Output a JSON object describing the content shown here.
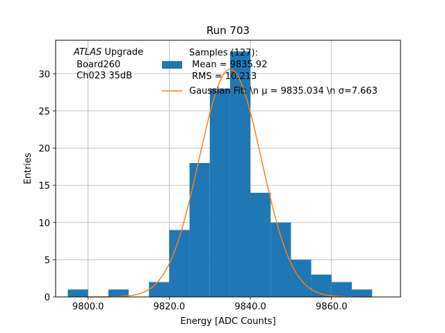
{
  "chart_data": {
    "type": "bar",
    "title": "Run 703",
    "xlabel": "Energy [ADC Counts]",
    "ylabel": "Entries",
    "xlim": [
      9792,
      9877
    ],
    "ylim": [
      0,
      34.5
    ],
    "x_ticks": [
      9800,
      9820,
      9840,
      9860
    ],
    "x_tick_labels": [
      "9800.0",
      "9820.0",
      "9840.0",
      "9860.0"
    ],
    "y_ticks": [
      0,
      5,
      10,
      15,
      20,
      25,
      30
    ],
    "y_tick_labels": [
      "0",
      "5",
      "10",
      "15",
      "20",
      "25",
      "30"
    ],
    "grid": true,
    "annotation": {
      "italic": "ATLAS",
      "line1_rest": " Upgrade",
      "line2": " Board260",
      "line3": " Ch023 35dB"
    },
    "histogram": {
      "name": "Samples (127):",
      "color": "#1f77b4",
      "bin_edges": [
        9795,
        9800,
        9805,
        9810,
        9815,
        9820,
        9825,
        9830,
        9835,
        9840,
        9845,
        9850,
        9855,
        9860,
        9865,
        9870
      ],
      "counts": [
        1,
        0,
        1,
        0,
        2,
        9,
        18,
        28,
        33,
        14,
        10,
        5,
        3,
        2,
        1
      ]
    },
    "legend": {
      "placement": "top-right",
      "hist_lines": [
        "Samples (127):",
        " Mean = 9835.92",
        " RMS = 10.213"
      ],
      "fit_label": "Gaussian Fit: \\n μ = 9835.034 \\n σ=7.663"
    },
    "fit": {
      "type": "gaussian",
      "color": "#ff7f0e",
      "mu": 9835.034,
      "sigma": 7.663,
      "amplitude": 30.6,
      "x_range": [
        9800,
        9870
      ]
    }
  }
}
